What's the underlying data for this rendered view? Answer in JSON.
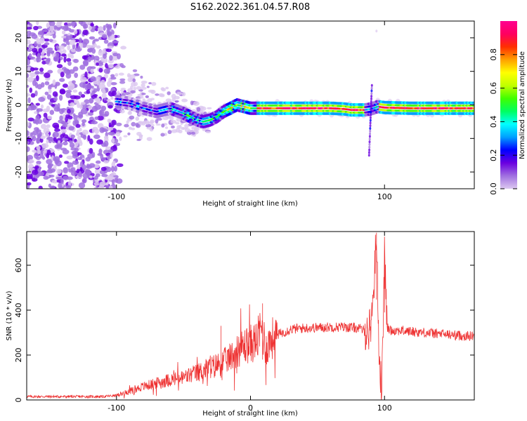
{
  "title": "S162.2022.361.04.57.R08",
  "chart_data": [
    {
      "type": "heatmap",
      "xlabel": "Height of straight line (km)",
      "ylabel": "Frequency (Hz)",
      "xlim": [
        -167,
        167
      ],
      "ylim": [
        -25,
        25
      ],
      "xticks": [
        -100,
        100
      ],
      "yticks": [
        -20,
        -10,
        0,
        10,
        20
      ],
      "ridge": {
        "x": [
          -100,
          -90,
          -80,
          -70,
          -60,
          -50,
          -40,
          -35,
          -30,
          -25,
          -20,
          -15,
          -10,
          -5,
          0,
          10,
          20,
          40,
          60,
          70,
          75,
          80,
          85,
          90,
          95,
          100,
          120,
          140,
          167
        ],
        "freq": [
          1.0,
          0.5,
          -1.0,
          -2.0,
          -1.0,
          -2.5,
          -4.5,
          -5.0,
          -4.5,
          -3.5,
          -2.0,
          -1.0,
          0.0,
          -0.5,
          -1.0,
          -1.0,
          -1.0,
          -1.0,
          -1.0,
          -1.2,
          -1.5,
          -1.5,
          -1.5,
          -1.2,
          -0.5,
          -0.8,
          -1.0,
          -1.0,
          -1.0
        ]
      },
      "colorbar": {
        "label": "Normalized spectral amplitude",
        "range": [
          0,
          1
        ],
        "ticks": [
          "0.0",
          "0.2",
          "0.4",
          "0.6",
          "0.8"
        ],
        "colors": [
          "#ffffff",
          "#dcc8f0",
          "#a070e0",
          "#6a00e0",
          "#0000ff",
          "#00a0ff",
          "#00ffff",
          "#00ff60",
          "#40ff00",
          "#c0ff00",
          "#ffff00",
          "#ffa000",
          "#ff3000",
          "#ff0060",
          "#ff0090"
        ]
      }
    },
    {
      "type": "line",
      "xlabel": "Height of straight line (km)",
      "ylabel": "SNR (10 * v/v)",
      "xlim": [
        -167,
        167
      ],
      "ylim": [
        0,
        750
      ],
      "xticks": [
        -100,
        0,
        100
      ],
      "yticks": [
        0,
        200,
        400,
        600
      ],
      "color": "#ee3333",
      "series": [
        {
          "x": [
            -167,
            -140,
            -110,
            -100,
            -90,
            -80,
            -70,
            -60,
            -50,
            -40,
            -30,
            -20,
            -15,
            -10,
            -5,
            0,
            5,
            8,
            10,
            12,
            15,
            20,
            30,
            40,
            50,
            60,
            70,
            80,
            85,
            88,
            90,
            92,
            94,
            96,
            98,
            100,
            102,
            105,
            110,
            120,
            130,
            140,
            150,
            160,
            167
          ],
          "y": [
            15,
            15,
            15,
            20,
            40,
            60,
            75,
            90,
            100,
            120,
            145,
            170,
            190,
            220,
            240,
            250,
            265,
            320,
            280,
            230,
            270,
            290,
            315,
            320,
            322,
            325,
            325,
            320,
            310,
            300,
            350,
            500,
            745,
            200,
            40,
            650,
            320,
            310,
            310,
            305,
            300,
            295,
            290,
            285,
            285
          ]
        }
      ],
      "peaks": [
        {
          "x": 94,
          "y": 745
        },
        {
          "x": 100,
          "y": 650
        },
        {
          "x": 9,
          "y": 430
        },
        {
          "x": -22,
          "y": 330
        }
      ]
    }
  ]
}
